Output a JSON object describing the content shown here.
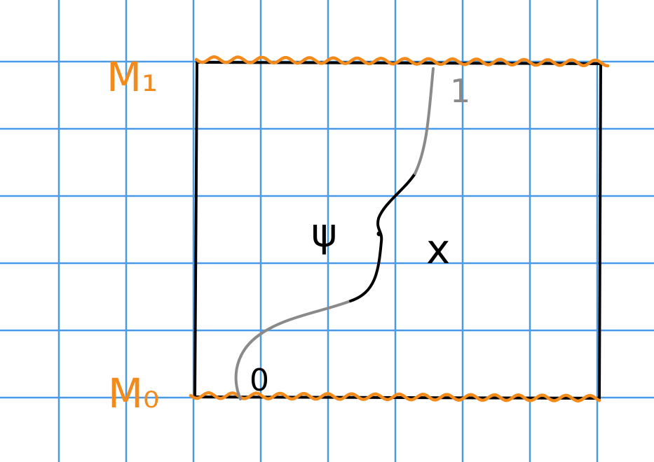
{
  "labels": {
    "top_boundary": "M₁",
    "bottom_boundary": "M₀",
    "psi": "ψ",
    "x": "x",
    "endpoint_top": "1",
    "endpoint_bottom": "0"
  },
  "colors": {
    "grid": "#4a9be6",
    "boundary": "#f28a1c",
    "frame": "#000000",
    "path_outer": "#8a8a8a",
    "path_inner": "#000000",
    "background": "#ffffff"
  }
}
